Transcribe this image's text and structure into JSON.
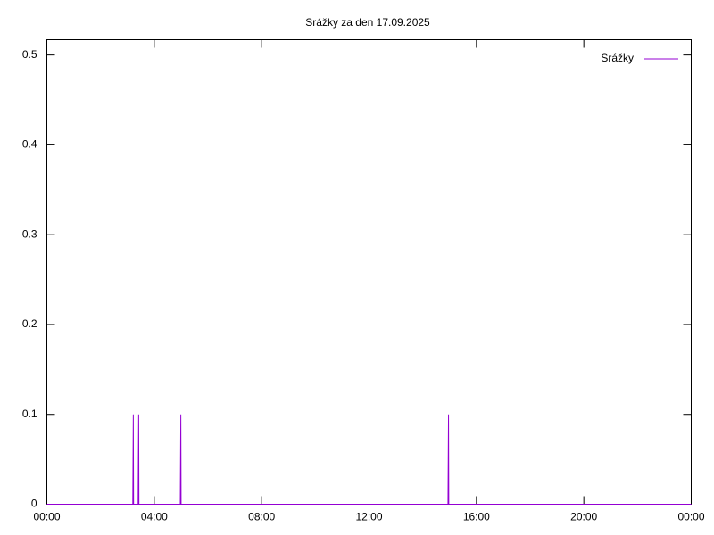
{
  "chart_data": {
    "type": "line",
    "title": "Srážky za den 17.09.2025",
    "x": [
      0,
      3.2,
      3.21,
      3.22,
      3.23,
      3.4,
      3.41,
      3.42,
      3.43,
      4.97,
      4.98,
      4.99,
      5.0,
      14.94,
      14.95,
      14.96,
      14.97,
      24
    ],
    "series": [
      {
        "name": "Srážky",
        "color": "#9400d3",
        "values": [
          0,
          0,
          0.05,
          0.1,
          0,
          0,
          0.05,
          0.1,
          0,
          0,
          0.05,
          0.1,
          0,
          0,
          0.05,
          0.1,
          0,
          0
        ]
      }
    ],
    "xlim": [
      0,
      24
    ],
    "xticks": [
      {
        "value": 0,
        "label": "00:00"
      },
      {
        "value": 4,
        "label": "04:00"
      },
      {
        "value": 8,
        "label": "08:00"
      },
      {
        "value": 12,
        "label": "12:00"
      },
      {
        "value": 16,
        "label": "16:00"
      },
      {
        "value": 20,
        "label": "20:00"
      },
      {
        "value": 24,
        "label": "00:00"
      }
    ],
    "ylim": [
      0,
      0.517
    ],
    "yticks": [
      0,
      0.1,
      0.2,
      0.3,
      0.4,
      0.5
    ],
    "grid": false,
    "legend": "top-right"
  }
}
